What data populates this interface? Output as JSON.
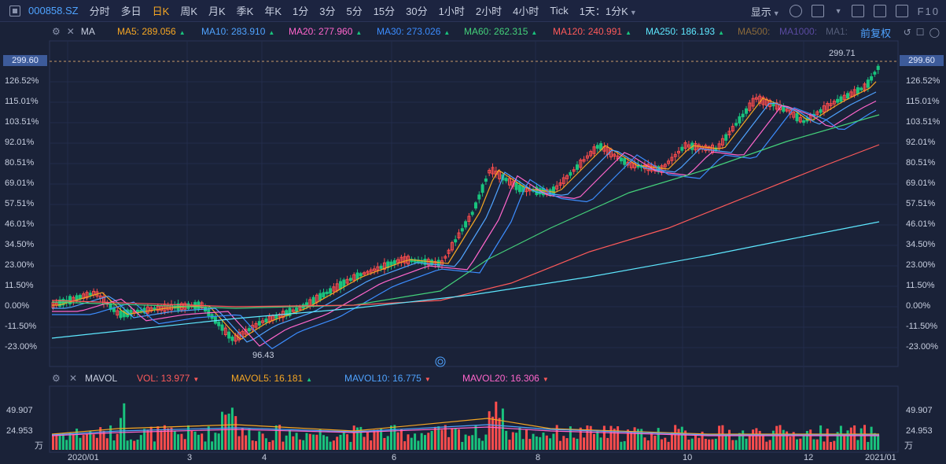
{
  "toolbar": {
    "symbol": "000858.SZ",
    "periods": [
      "分时",
      "多日",
      "日K",
      "周K",
      "月K",
      "季K",
      "年K",
      "1分",
      "3分",
      "5分",
      "15分",
      "30分",
      "1小时",
      "2小时",
      "4小时",
      "Tick",
      "1天：1分K"
    ],
    "active_period": "日K",
    "display_label": "显示",
    "fio_label": "F10"
  },
  "ma_legend": {
    "title": "MA",
    "items": [
      {
        "label": "MA5: 289.056",
        "color": "#f5a623"
      },
      {
        "label": "MA10: 283.910",
        "color": "#4fa3ff"
      },
      {
        "label": "MA20: 277.960",
        "color": "#ff66cc"
      },
      {
        "label": "MA30: 273.026",
        "color": "#3c8dff"
      },
      {
        "label": "MA60: 262.315",
        "color": "#44d17a"
      },
      {
        "label": "MA120: 240.991",
        "color": "#ff5a5a"
      },
      {
        "label": "MA250: 186.193",
        "color": "#5ee8ff"
      },
      {
        "label": "MA500:",
        "color": "#8b6a3a"
      },
      {
        "label": "MA1000:",
        "color": "#5a4aa0"
      },
      {
        "label": "MA1:",
        "color": "#555e7a"
      }
    ],
    "fuquan": "前复权"
  },
  "price_axis": {
    "current": "299.60",
    "labels": [
      "126.52%",
      "115.01%",
      "103.51%",
      "92.01%",
      "80.51%",
      "69.01%",
      "57.51%",
      "46.01%",
      "34.50%",
      "23.00%",
      "11.50%",
      "0.00%",
      "-11.50%",
      "-23.00%"
    ],
    "high_label": "299.71",
    "low_label": "96.43"
  },
  "volume": {
    "title": "MAVOL",
    "items": [
      {
        "label": "VOL: 13.977",
        "color": "#ff5a5a",
        "dir": "down"
      },
      {
        "label": "MAVOL5: 16.181",
        "color": "#f5a623",
        "dir": "up"
      },
      {
        "label": "MAVOL10: 16.775",
        "color": "#4fa3ff",
        "dir": "down"
      },
      {
        "label": "MAVOL20: 16.306",
        "color": "#ff66cc",
        "dir": "down"
      }
    ],
    "axis_labels": [
      "49.907",
      "24.953",
      "万"
    ]
  },
  "dates": [
    "2020/01",
    "3",
    "4",
    "6",
    "8",
    "10",
    "12",
    "2021/01"
  ],
  "colors": {
    "up": "#ff4d4d",
    "down": "#19c37d",
    "bg": "#1a2238"
  }
}
